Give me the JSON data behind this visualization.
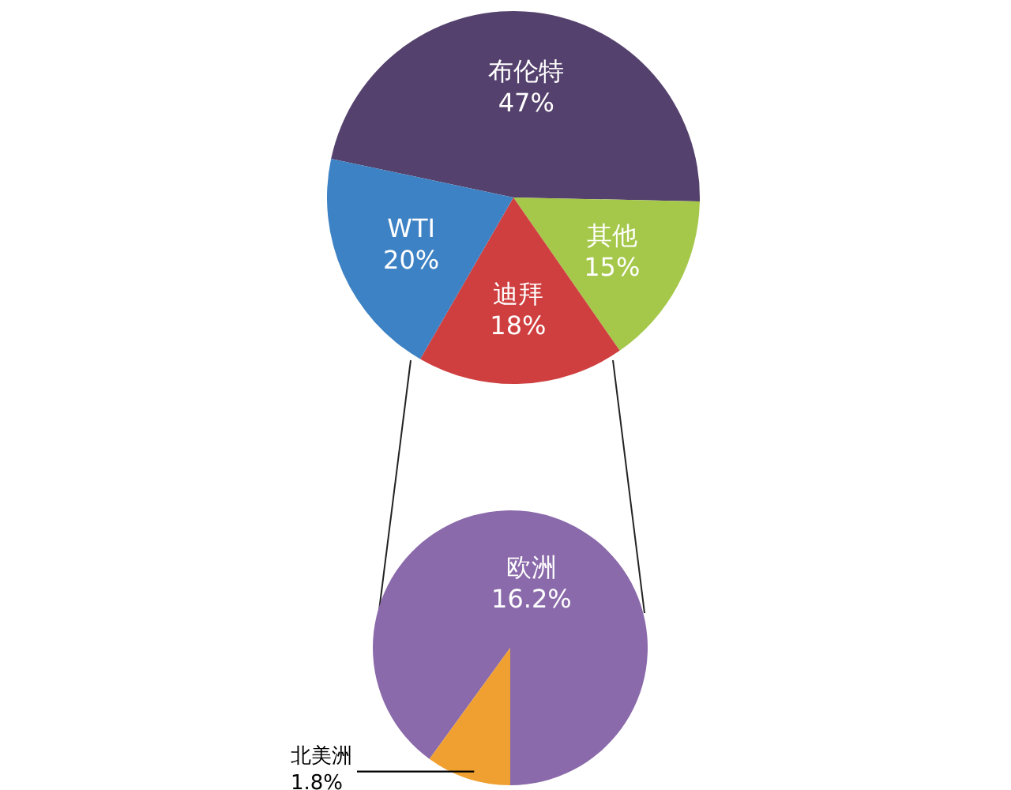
{
  "chart_data": [
    {
      "type": "pie",
      "categories": [
        "布伦特",
        "其他",
        "迪拜",
        "WTI"
      ],
      "values": [
        47,
        15,
        18,
        20
      ],
      "value_labels": [
        "47%",
        "15%",
        "18%",
        "20%"
      ],
      "colors": [
        "#55416d",
        "#a5c84a",
        "#cf3f3f",
        "#3d82c4"
      ]
    },
    {
      "type": "pie",
      "categories": [
        "欧洲",
        "北美洲"
      ],
      "values": [
        16.2,
        1.8
      ],
      "value_labels": [
        "16.2%",
        "1.8%"
      ],
      "colors": [
        "#8a6aaa",
        "#f0a030"
      ]
    }
  ]
}
